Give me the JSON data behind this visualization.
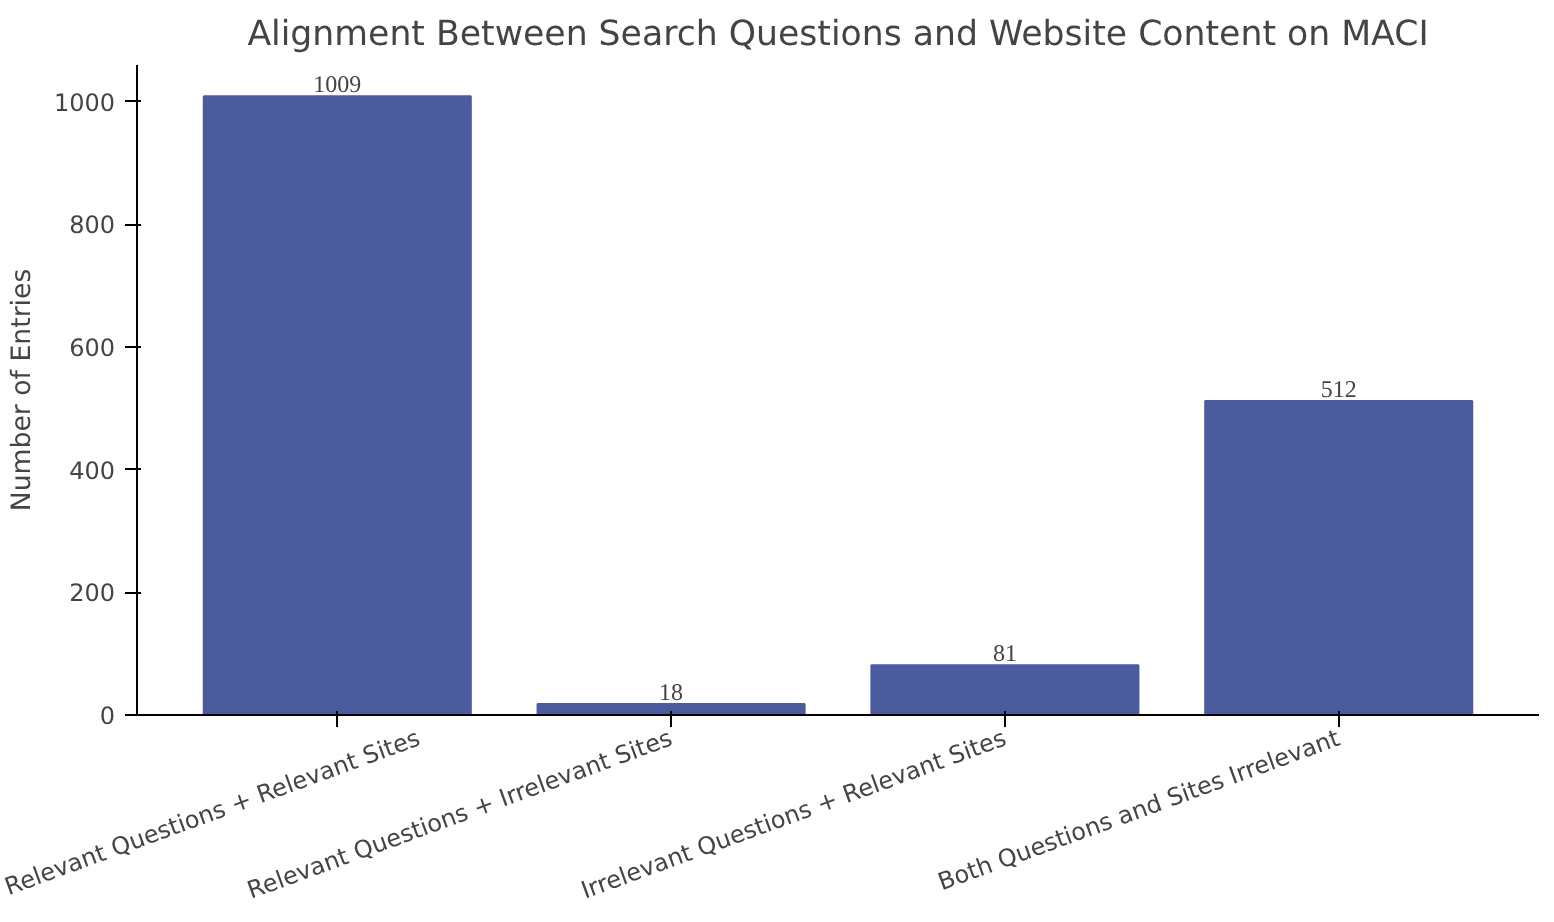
{
  "chart_data": {
    "type": "bar",
    "title": "Alignment Between Search Questions and Website Content on MACI",
    "ylabel": "Number of Entries",
    "categories": [
      "Relevant Questions + Relevant Sites",
      "Relevant Questions + Irrelevant Sites",
      "Irrelevant Questions + Relevant Sites",
      "Both Questions and Sites Irrelevant"
    ],
    "values": [
      1009,
      18,
      81,
      512
    ],
    "color": "#4c5b9e",
    "ylim": [
      0,
      1060
    ],
    "yticks": [
      0,
      200,
      400,
      600,
      800,
      1000
    ],
    "grid": false,
    "data_labels": true
  }
}
